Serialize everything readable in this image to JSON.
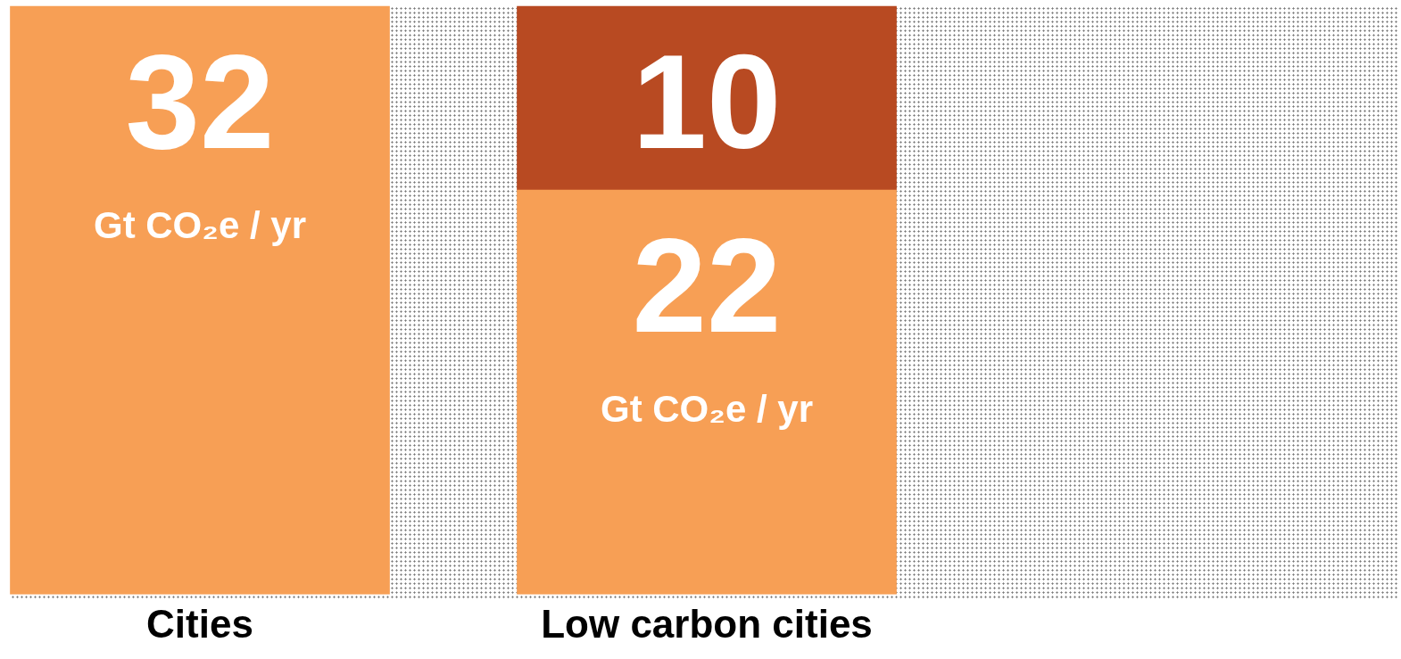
{
  "chart_data": {
    "type": "bar",
    "stacked": true,
    "categories": [
      "Cities",
      "Low carbon cities"
    ],
    "series": [
      {
        "color": "#f79f55",
        "values": [
          32,
          22
        ]
      },
      {
        "color": "#b84a22",
        "values": [
          null,
          10
        ]
      }
    ],
    "ylim": [
      0,
      32
    ],
    "tick_labels": "x",
    "data_labels": true,
    "grid": false,
    "legend": false,
    "annotations": [
      "Gt CO₂e / yr",
      "Gt CO₂e / yr"
    ]
  }
}
